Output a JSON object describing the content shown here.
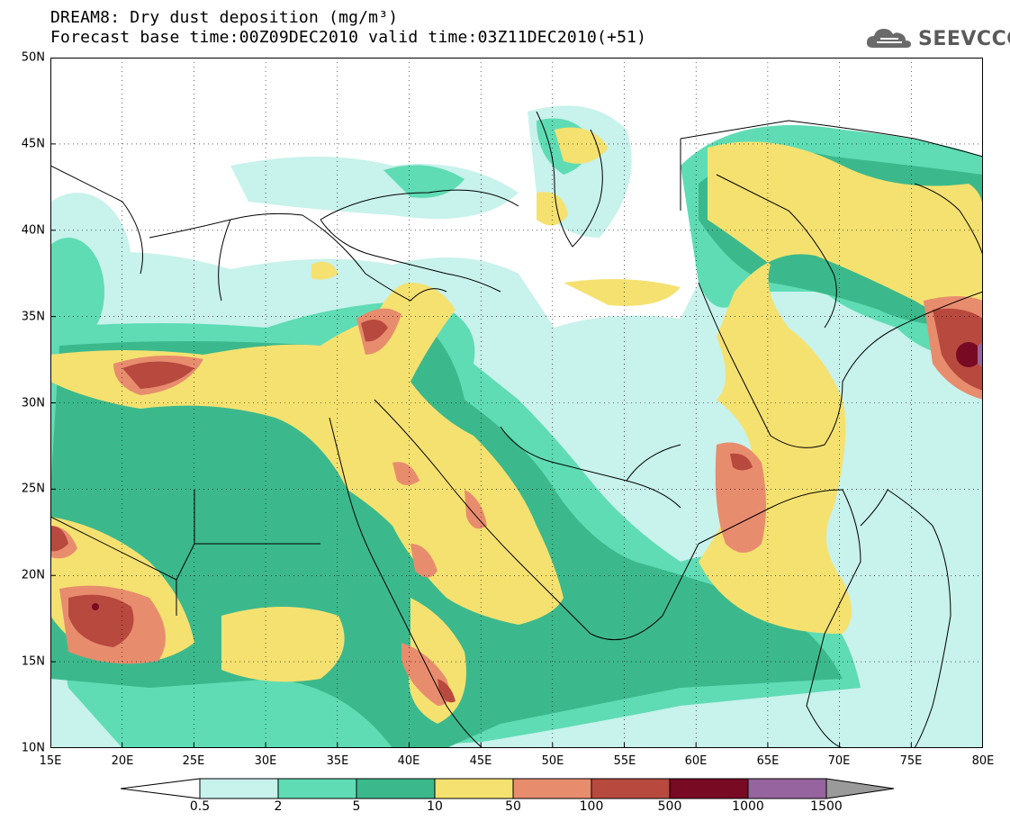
{
  "title": {
    "line1": "DREAM8: Dry dust deposition (mg/m³)",
    "line2": "Forecast base time:00Z09DEC2010 valid time:03Z11DEC2010(+51)"
  },
  "logo": {
    "text": "SEEVCCC",
    "icon": "cloud-icon"
  },
  "map": {
    "lon_range": [
      15,
      80
    ],
    "lat_range": [
      10,
      50
    ],
    "grid": "dotted",
    "x_ticks": [
      "15E",
      "20E",
      "25E",
      "30E",
      "35E",
      "40E",
      "45E",
      "50E",
      "55E",
      "60E",
      "65E",
      "70E",
      "75E",
      "80E"
    ],
    "y_ticks": [
      "50N",
      "45N",
      "40N",
      "35N",
      "30N",
      "25N",
      "20N",
      "15N",
      "10N"
    ]
  },
  "colorbar": {
    "labels": [
      "0.5",
      "2",
      "5",
      "10",
      "50",
      "100",
      "500",
      "1000",
      "1500"
    ],
    "colors": [
      "#c8f2ec",
      "#5fdcb4",
      "#3cb98c",
      "#f5e170",
      "#e88c6e",
      "#b8493e",
      "#780a23",
      "#96649e",
      "#9a9a9a"
    ],
    "below_color": "#ffffff",
    "above_color": "#9a9a9a"
  }
}
